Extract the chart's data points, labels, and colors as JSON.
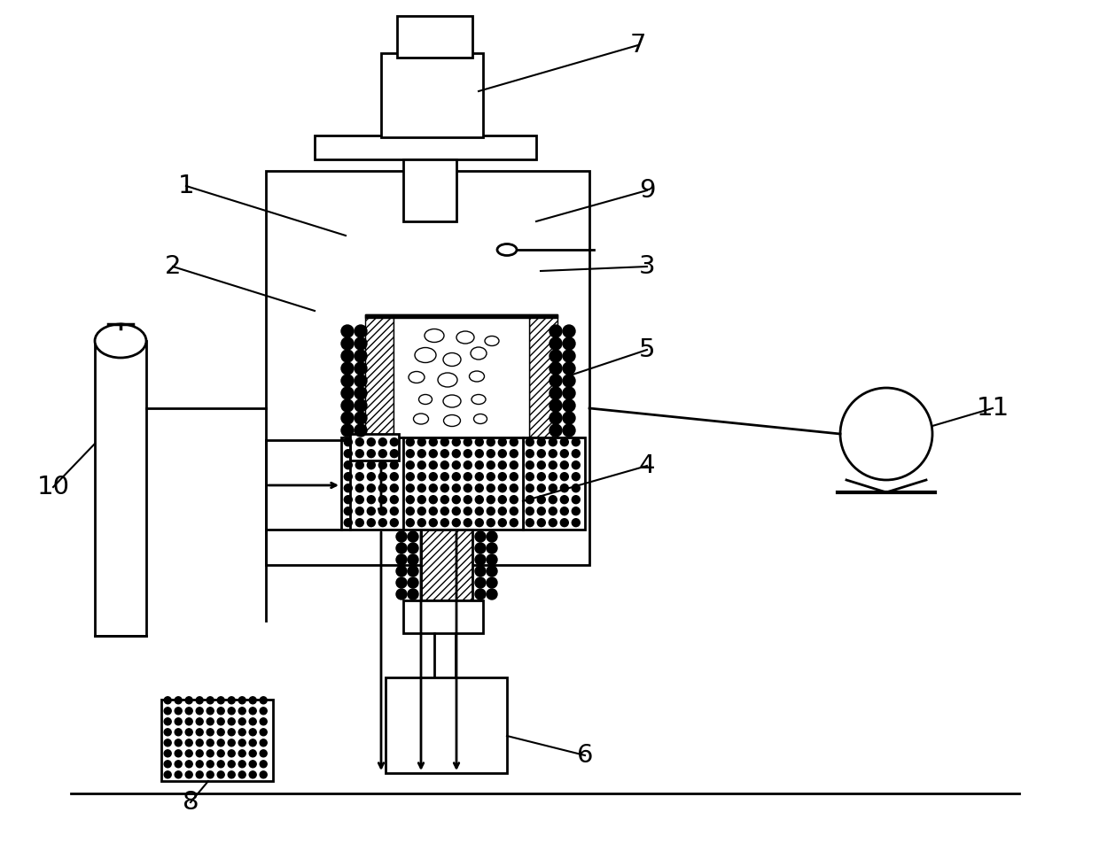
{
  "bg_color": "#ffffff",
  "lc": "#000000",
  "lw": 2.0,
  "lw_thin": 1.5,
  "lw_thick": 2.5
}
